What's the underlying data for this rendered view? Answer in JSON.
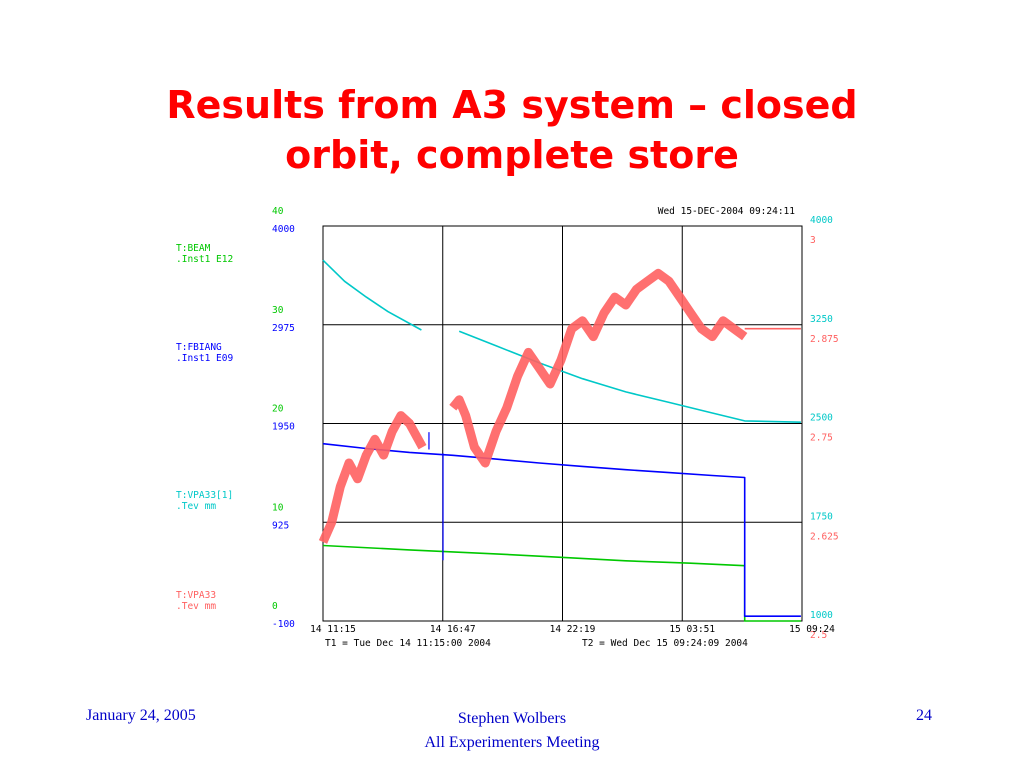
{
  "slide": {
    "title_line1": "Results from A3 system – closed",
    "title_line2": "orbit, complete store"
  },
  "footer": {
    "date": "January 24, 2005",
    "author": "Stephen Wolbers",
    "meeting": "All Experimenters Meeting",
    "page": "24"
  },
  "chart_data": {
    "type": "line",
    "timestamp": "Wed 15-DEC-2004 09:24:11",
    "t1_label": "T1 = Tue Dec 14 11:15:00 2004",
    "t2_label": "T2 = Wed Dec 15 09:24:09 2004",
    "x_ticks": [
      "14 11:15",
      "14 16:47",
      "14 22:19",
      "15 03:51",
      "15 09:24"
    ],
    "x_range": [
      0,
      22.15
    ],
    "left_axes": [
      {
        "name": "T:BEAM",
        "desc": ".Inst1  E12",
        "color": "#00c800",
        "ticks": [
          "40",
          "30",
          "20",
          "10",
          "0"
        ],
        "range": [
          0,
          40
        ]
      },
      {
        "name": "T:FBIANG",
        "desc": ".Inst1  E09",
        "color": "#0000ff",
        "ticks": [
          "4000",
          "2975",
          "1950",
          "925",
          "-100"
        ],
        "range": [
          -100,
          4000
        ]
      },
      {
        "name": "T:VPA33[1]",
        "desc": ".Tev    mm",
        "color": "#00c8c8",
        "ticks": [
          "4000",
          "3250",
          "2500",
          "1750",
          "1000"
        ],
        "range": [
          1000,
          4000
        ]
      },
      {
        "name": "T:VPA33",
        "desc": ".Tev    mm",
        "color": "#ff6060",
        "ticks": [
          "3",
          "2.875",
          "2.75",
          "2.625",
          "2.5"
        ],
        "range": [
          2.5,
          3
        ]
      }
    ],
    "series": [
      {
        "name": "T:BEAM",
        "color": "#00c800",
        "axis": "left-green",
        "points": [
          [
            0,
            7.65
          ],
          [
            4,
            7.2
          ],
          [
            8,
            6.8
          ],
          [
            11,
            6.45
          ],
          [
            14,
            6.1
          ],
          [
            17,
            5.85
          ],
          [
            19.5,
            5.6
          ],
          [
            19.5,
            0
          ],
          [
            22.1,
            0
          ]
        ]
      },
      {
        "name": "T:FBIANG",
        "color": "#0000ff",
        "axis": "left-blue",
        "points": [
          [
            0,
            1740
          ],
          [
            2,
            1690
          ],
          [
            4,
            1650
          ],
          [
            6,
            1620
          ],
          [
            8,
            1580
          ],
          [
            10,
            1540
          ],
          [
            12,
            1505
          ],
          [
            14,
            1470
          ],
          [
            16,
            1440
          ],
          [
            18,
            1410
          ],
          [
            19.5,
            1390
          ],
          [
            19.5,
            -50
          ],
          [
            22.1,
            -50
          ]
        ],
        "spikes": [
          {
            "x": 5.55,
            "from": 530,
            "to": 1640
          },
          {
            "x": 4.9,
            "from": 1680,
            "to": 1860
          }
        ]
      },
      {
        "name": "T:VPA33[1]",
        "color": "#00c8c8",
        "axis": "right-cyan",
        "segments": [
          [
            [
              0,
              3740
            ],
            [
              1,
              3580
            ],
            [
              2,
              3460
            ],
            [
              3,
              3350
            ],
            [
              4.55,
              3210
            ]
          ],
          [
            [
              6.3,
              3200
            ],
            [
              8,
              3090
            ],
            [
              10,
              2960
            ],
            [
              12,
              2840
            ],
            [
              14,
              2740
            ],
            [
              16,
              2660
            ],
            [
              18,
              2580
            ],
            [
              19.5,
              2520
            ],
            [
              22.1,
              2510
            ]
          ]
        ]
      },
      {
        "name": "T:VPA33",
        "color": "#ff6060",
        "axis": "right-red",
        "segments": [
          [
            [
              0,
              2.6
            ],
            [
              0.4,
              2.625
            ],
            [
              0.8,
              2.67
            ],
            [
              1.2,
              2.7
            ],
            [
              1.6,
              2.68
            ],
            [
              2,
              2.71
            ],
            [
              2.4,
              2.73
            ],
            [
              2.8,
              2.71
            ],
            [
              3.2,
              2.74
            ],
            [
              3.6,
              2.76
            ],
            [
              4,
              2.75
            ],
            [
              4.4,
              2.73
            ],
            [
              4.6,
              2.72
            ]
          ],
          [
            [
              6,
              2.77
            ],
            [
              6.3,
              2.78
            ],
            [
              6.6,
              2.76
            ],
            [
              7,
              2.72
            ],
            [
              7.5,
              2.7
            ],
            [
              8,
              2.74
            ],
            [
              8.5,
              2.77
            ],
            [
              9,
              2.81
            ],
            [
              9.5,
              2.84
            ],
            [
              10,
              2.82
            ],
            [
              10.5,
              2.8
            ],
            [
              11,
              2.83
            ],
            [
              11.5,
              2.87
            ],
            [
              12,
              2.88
            ],
            [
              12.5,
              2.86
            ],
            [
              13,
              2.89
            ],
            [
              13.5,
              2.91
            ],
            [
              14,
              2.9
            ],
            [
              14.5,
              2.92
            ],
            [
              15,
              2.93
            ],
            [
              15.5,
              2.94
            ],
            [
              16,
              2.93
            ],
            [
              16.5,
              2.91
            ],
            [
              17,
              2.89
            ],
            [
              17.5,
              2.87
            ],
            [
              18,
              2.86
            ],
            [
              18.5,
              2.88
            ],
            [
              19,
              2.87
            ],
            [
              19.5,
              2.86
            ]
          ],
          [
            [
              19.5,
              2.87
            ],
            [
              22.1,
              2.87
            ]
          ]
        ]
      }
    ]
  }
}
